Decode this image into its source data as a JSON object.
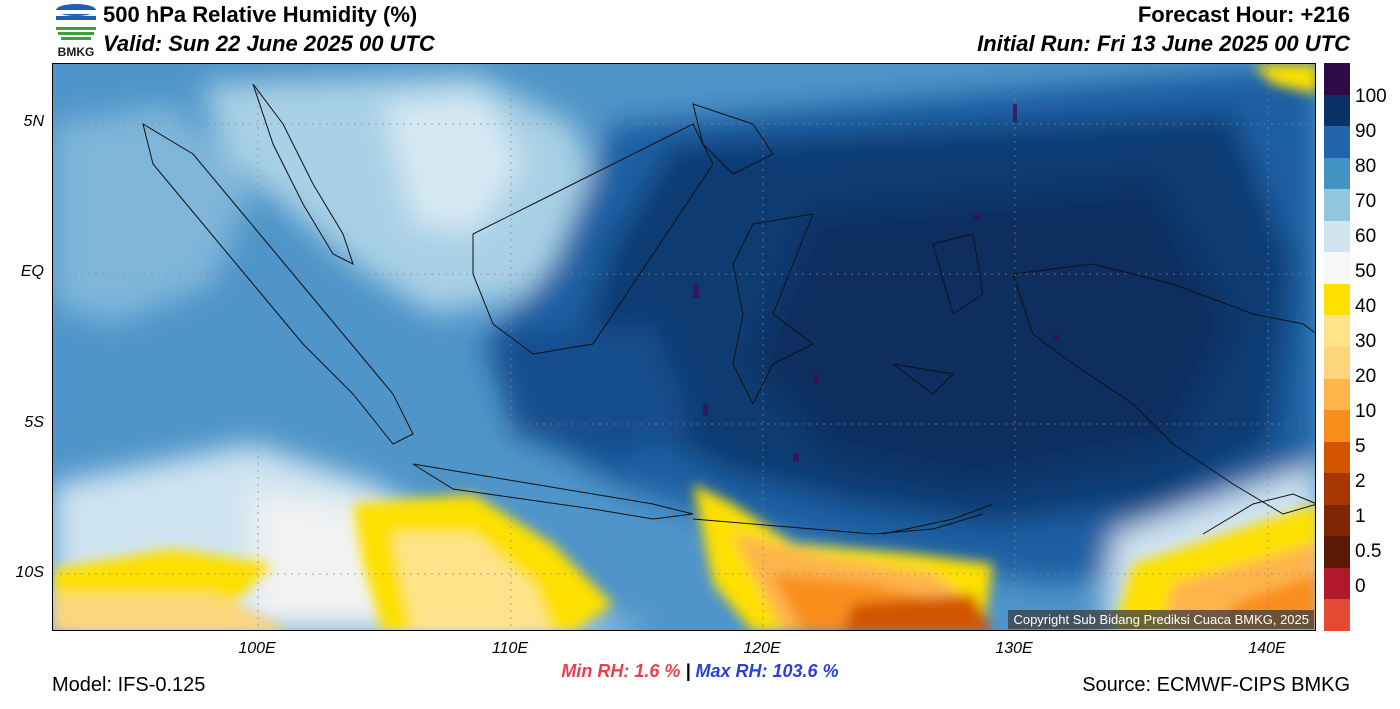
{
  "header": {
    "title": "500 hPa Relative Humidity (%)",
    "valid": "Valid: Sun 22 June 2025 00 UTC",
    "forecast_hour": "Forecast Hour: +216",
    "initial_run": "Initial Run: Fri 13 June 2025 00 UTC"
  },
  "logo": {
    "text": "BMKG"
  },
  "map": {
    "lat_labels": [
      "5N",
      "EQ",
      "5S",
      "10S"
    ],
    "lon_labels": [
      "100E",
      "110E",
      "120E",
      "130E",
      "140E"
    ],
    "copyright": "Copyright Sub Bidang Prediksi Cuaca BMKG, 2025"
  },
  "colorbar": {
    "labels": [
      "100",
      "90",
      "80",
      "70",
      "60",
      "50",
      "40",
      "30",
      "20",
      "10",
      "5",
      "2",
      "1",
      "0.5",
      "0"
    ],
    "colors": [
      "#2d0b45",
      "#0b3268",
      "#2166ac",
      "#4393c3",
      "#92c5de",
      "#d1e5f0",
      "#f7f7f7",
      "#fde000",
      "#fee38b",
      "#fdd57a",
      "#fdb44b",
      "#f98e1d",
      "#d35400",
      "#a63603",
      "#7f2704",
      "#5c1a06",
      "#b2182b",
      "#e34a33"
    ]
  },
  "stats": {
    "min_label": "Min RH:   1.6 %",
    "separator": "|",
    "max_label": "Max RH: 103.6 %"
  },
  "footer": {
    "model": "Model: IFS-0.125",
    "source": "Source: ECMWF-CIPS BMKG"
  }
}
